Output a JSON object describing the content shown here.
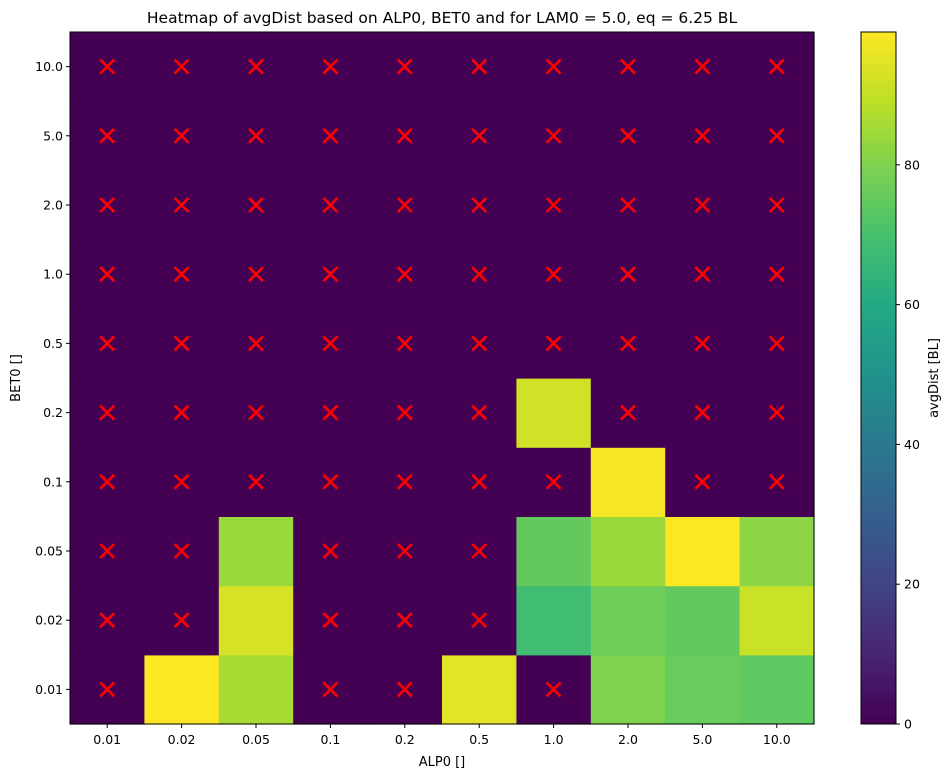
{
  "chart_data": {
    "type": "heatmap",
    "title": "Heatmap of  avgDist based on ALP0, BET0 and for LAM0 =  5.0, eq = 6.25 BL",
    "xlabel": "ALP0 []",
    "ylabel": "BET0 []",
    "x_categories": [
      "0.01",
      "0.02",
      "0.05",
      "0.1",
      "0.2",
      "0.5",
      "1.0",
      "2.0",
      "5.0",
      "10.0"
    ],
    "y_categories": [
      "0.01",
      "0.02",
      "0.05",
      "0.1",
      "0.2",
      "0.5",
      "1.0",
      "2.0",
      "5.0",
      "10.0"
    ],
    "values": [
      [
        0,
        99,
        86,
        0,
        0,
        95,
        0,
        80,
        76,
        74
      ],
      [
        0,
        0,
        93,
        0,
        0,
        0,
        68,
        77,
        75,
        91
      ],
      [
        0,
        0,
        84,
        0,
        0,
        0,
        75,
        84,
        99,
        82
      ],
      [
        0,
        0,
        0,
        0,
        0,
        0,
        0,
        98,
        0,
        0
      ],
      [
        0,
        0,
        0,
        0,
        0,
        0,
        92,
        0,
        0,
        0
      ],
      [
        0,
        0,
        0,
        0,
        0,
        0,
        0,
        0,
        0,
        0
      ],
      [
        0,
        0,
        0,
        0,
        0,
        0,
        0,
        0,
        0,
        0
      ],
      [
        0,
        0,
        0,
        0,
        0,
        0,
        0,
        0,
        0,
        0
      ],
      [
        0,
        0,
        0,
        0,
        0,
        0,
        0,
        0,
        0,
        0
      ],
      [
        0,
        0,
        0,
        0,
        0,
        0,
        0,
        0,
        0,
        0
      ]
    ],
    "markers": {
      "symbol": "x",
      "color": "#ff0000",
      "cells": [
        [
          0,
          0
        ],
        [
          0,
          3
        ],
        [
          0,
          4
        ],
        [
          0,
          6
        ],
        [
          1,
          0
        ],
        [
          1,
          1
        ],
        [
          1,
          3
        ],
        [
          1,
          4
        ],
        [
          1,
          5
        ],
        [
          2,
          0
        ],
        [
          2,
          1
        ],
        [
          2,
          3
        ],
        [
          2,
          4
        ],
        [
          2,
          5
        ],
        [
          3,
          0
        ],
        [
          3,
          1
        ],
        [
          3,
          2
        ],
        [
          3,
          3
        ],
        [
          3,
          4
        ],
        [
          3,
          5
        ],
        [
          3,
          6
        ],
        [
          3,
          8
        ],
        [
          3,
          9
        ],
        [
          4,
          0
        ],
        [
          4,
          1
        ],
        [
          4,
          2
        ],
        [
          4,
          3
        ],
        [
          4,
          4
        ],
        [
          4,
          5
        ],
        [
          4,
          7
        ],
        [
          4,
          8
        ],
        [
          4,
          9
        ],
        [
          5,
          0
        ],
        [
          5,
          1
        ],
        [
          5,
          2
        ],
        [
          5,
          3
        ],
        [
          5,
          4
        ],
        [
          5,
          5
        ],
        [
          5,
          6
        ],
        [
          5,
          7
        ],
        [
          5,
          8
        ],
        [
          5,
          9
        ],
        [
          6,
          0
        ],
        [
          6,
          1
        ],
        [
          6,
          2
        ],
        [
          6,
          3
        ],
        [
          6,
          4
        ],
        [
          6,
          5
        ],
        [
          6,
          6
        ],
        [
          6,
          7
        ],
        [
          6,
          8
        ],
        [
          6,
          9
        ],
        [
          7,
          0
        ],
        [
          7,
          1
        ],
        [
          7,
          2
        ],
        [
          7,
          3
        ],
        [
          7,
          4
        ],
        [
          7,
          5
        ],
        [
          7,
          6
        ],
        [
          7,
          7
        ],
        [
          7,
          8
        ],
        [
          7,
          9
        ],
        [
          8,
          0
        ],
        [
          8,
          1
        ],
        [
          8,
          2
        ],
        [
          8,
          3
        ],
        [
          8,
          4
        ],
        [
          8,
          5
        ],
        [
          8,
          6
        ],
        [
          8,
          7
        ],
        [
          8,
          8
        ],
        [
          8,
          9
        ],
        [
          9,
          0
        ],
        [
          9,
          1
        ],
        [
          9,
          2
        ],
        [
          9,
          3
        ],
        [
          9,
          4
        ],
        [
          9,
          5
        ],
        [
          9,
          6
        ],
        [
          9,
          7
        ],
        [
          9,
          8
        ],
        [
          9,
          9
        ]
      ]
    },
    "colorbar": {
      "label": "avgDist [BL]",
      "colormap": "viridis",
      "range": [
        0,
        99
      ],
      "ticks": [
        0,
        20,
        40,
        60,
        80
      ]
    },
    "grid": false
  }
}
